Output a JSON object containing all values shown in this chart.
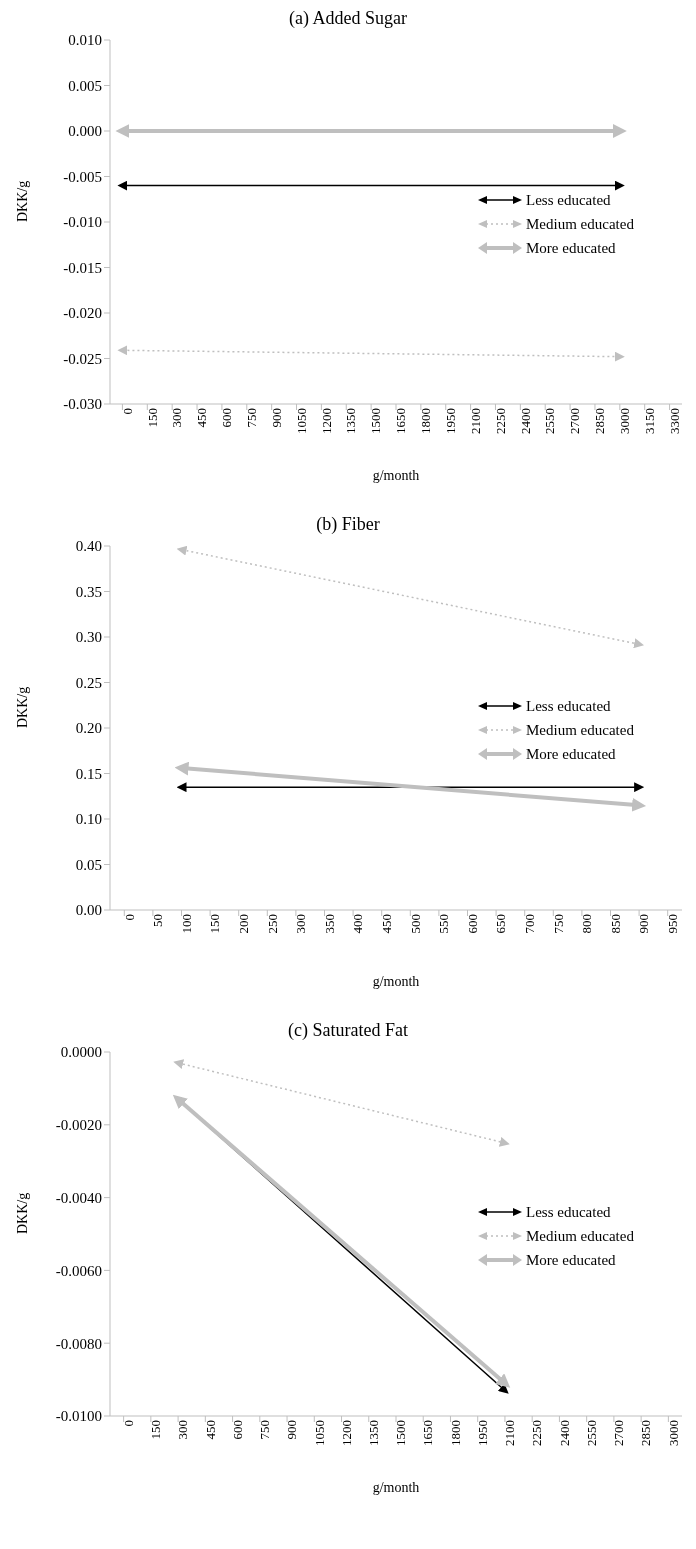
{
  "chart_data": [
    {
      "type": "line",
      "title": "(a) Added Sugar",
      "xlabel": "g/month",
      "ylabel": "DKK/g",
      "x": [
        0,
        3000
      ],
      "xlim": [
        -75,
        3375
      ],
      "xticks": [
        0,
        150,
        300,
        450,
        600,
        750,
        900,
        1050,
        1200,
        1350,
        1500,
        1650,
        1800,
        1950,
        2100,
        2250,
        2400,
        2550,
        2700,
        2850,
        3000,
        3150,
        3300
      ],
      "ylim": [
        -0.03,
        0.01
      ],
      "yticks": [
        {
          "value": -0.03,
          "label": "-0.030"
        },
        {
          "value": -0.025,
          "label": "-0.025"
        },
        {
          "value": -0.02,
          "label": "-0.020"
        },
        {
          "value": -0.015,
          "label": "-0.015"
        },
        {
          "value": -0.01,
          "label": "-0.010"
        },
        {
          "value": -0.005,
          "label": "-0.005"
        },
        {
          "value": 0,
          "label": "0.000"
        },
        {
          "value": 0.005,
          "label": "0.005"
        },
        {
          "value": 0.01,
          "label": "0.010"
        }
      ],
      "legend": "right",
      "series": [
        {
          "name": "Less educated",
          "color": "#000000",
          "line_style": "solid",
          "values": [
            -0.006,
            -0.006
          ]
        },
        {
          "name": "Medium educated",
          "color": "#bfbfbf",
          "line_style": "dotted",
          "values": [
            -0.0241,
            -0.0248
          ]
        },
        {
          "name": "More educated",
          "color": "#bfbfbf",
          "line_style": "solid",
          "values": [
            0.0,
            0.0
          ]
        }
      ]
    },
    {
      "type": "line",
      "title": "(b) Fiber",
      "xlabel": "g/month",
      "ylabel": "DKK/g",
      "x": [
        100,
        900
      ],
      "xlim": [
        -25,
        975
      ],
      "xticks": [
        0,
        50,
        100,
        150,
        200,
        250,
        300,
        350,
        400,
        450,
        500,
        550,
        600,
        650,
        700,
        750,
        800,
        850,
        900,
        950
      ],
      "ylim": [
        0,
        0.4
      ],
      "yticks": [
        {
          "value": 0,
          "label": "0.00"
        },
        {
          "value": 0.05,
          "label": "0.05"
        },
        {
          "value": 0.1,
          "label": "0.10"
        },
        {
          "value": 0.15,
          "label": "0.15"
        },
        {
          "value": 0.2,
          "label": "0.20"
        },
        {
          "value": 0.25,
          "label": "0.25"
        },
        {
          "value": 0.3,
          "label": "0.30"
        },
        {
          "value": 0.35,
          "label": "0.35"
        },
        {
          "value": 0.4,
          "label": "0.40"
        }
      ],
      "legend": "right",
      "series": [
        {
          "name": "Less educated",
          "color": "#000000",
          "line_style": "solid",
          "values": [
            0.135,
            0.135
          ]
        },
        {
          "name": "Medium educated",
          "color": "#bfbfbf",
          "line_style": "dotted",
          "values": [
            0.396,
            0.292
          ]
        },
        {
          "name": "More educated",
          "color": "#bfbfbf",
          "line_style": "solid",
          "values": [
            0.156,
            0.115
          ]
        }
      ]
    },
    {
      "type": "line",
      "title": "(c) Saturated Fat",
      "xlabel": "g/month",
      "ylabel": "DKK/g",
      "x": [
        300,
        2100
      ],
      "xlim": [
        -75,
        3075
      ],
      "xticks": [
        0,
        150,
        300,
        450,
        600,
        750,
        900,
        1050,
        1200,
        1350,
        1500,
        1650,
        1800,
        1950,
        2100,
        2250,
        2400,
        2550,
        2700,
        2850,
        3000
      ],
      "ylim": [
        -0.01,
        0
      ],
      "yticks": [
        {
          "value": -0.01,
          "label": "-0.0100"
        },
        {
          "value": -0.008,
          "label": "-0.0080"
        },
        {
          "value": -0.006,
          "label": "-0.0060"
        },
        {
          "value": -0.004,
          "label": "-0.0040"
        },
        {
          "value": -0.002,
          "label": "-0.0020"
        },
        {
          "value": 0,
          "label": "0.0000"
        }
      ],
      "legend": "right",
      "series": [
        {
          "name": "Less educated",
          "color": "#000000",
          "line_style": "solid",
          "values": [
            -0.0013,
            -0.0093
          ]
        },
        {
          "name": "Medium educated",
          "color": "#bfbfbf",
          "line_style": "dotted",
          "values": [
            -0.0003,
            -0.0025
          ]
        },
        {
          "name": "More educated",
          "color": "#bfbfbf",
          "line_style": "solid",
          "values": [
            -0.0013,
            -0.0091
          ]
        }
      ]
    }
  ]
}
